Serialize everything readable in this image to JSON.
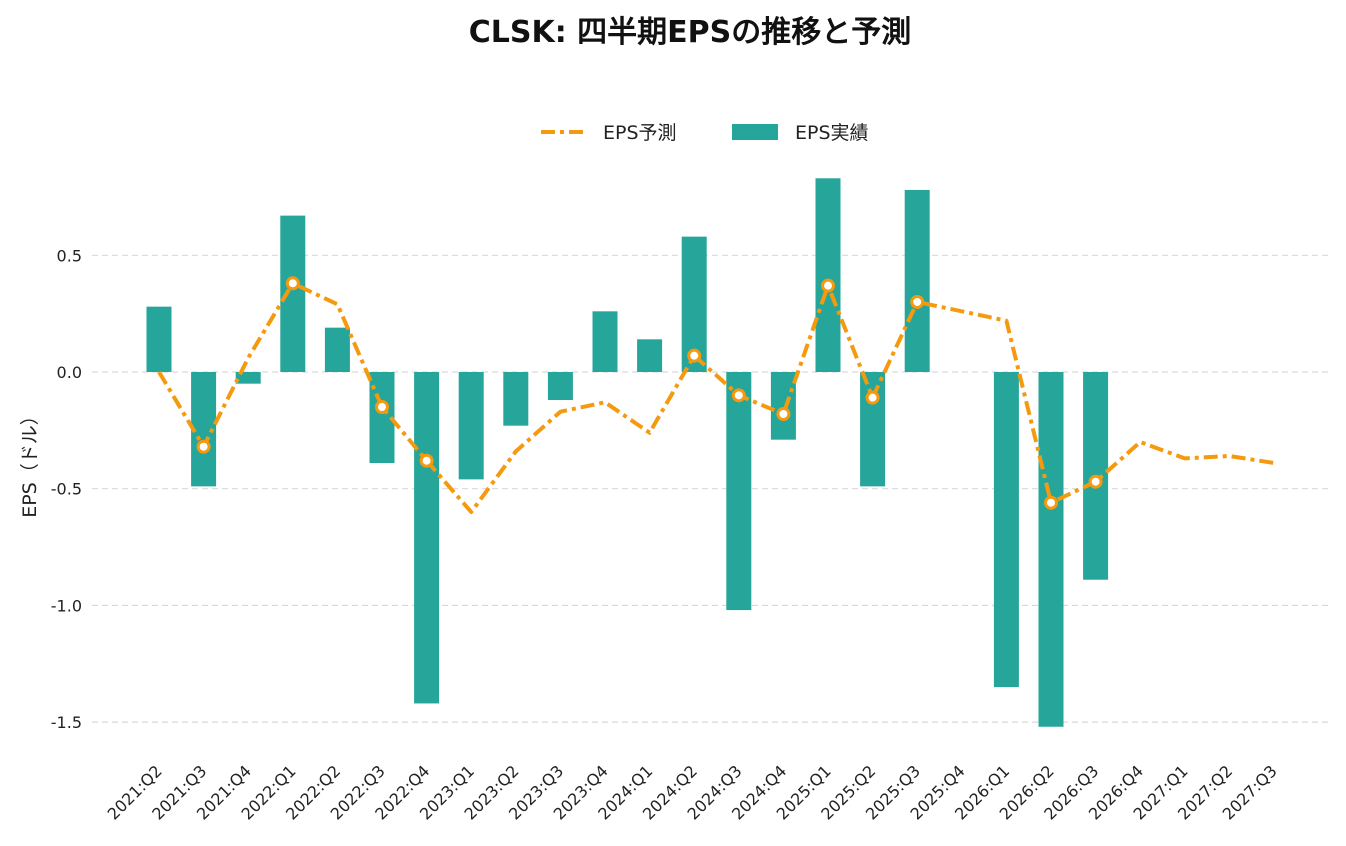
{
  "chart_data": {
    "type": "bar",
    "title": "CLSK: 四半期EPSの推移と予測",
    "ylabel": "EPS（ドル）",
    "xlabel": "",
    "ylim": [
      -1.6,
      0.85
    ],
    "yticks": [
      0.5,
      0.0,
      -0.5,
      -1.0,
      -1.5
    ],
    "ytick_labels": [
      "0.5",
      "0.0",
      "-0.5",
      "-1.0",
      "-1.5"
    ],
    "grid": true,
    "legend_position": "top-center",
    "categories": [
      "2021:Q2",
      "2021:Q3",
      "2021:Q4",
      "2022:Q1",
      "2022:Q2",
      "2022:Q3",
      "2022:Q4",
      "2023:Q1",
      "2023:Q2",
      "2023:Q3",
      "2023:Q4",
      "2024:Q1",
      "2024:Q2",
      "2024:Q3",
      "2024:Q4",
      "2025:Q1",
      "2025:Q2",
      "2025:Q3",
      "2025:Q4",
      "2026:Q1",
      "2026:Q2",
      "2026:Q3",
      "2026:Q4",
      "2027:Q1",
      "2027:Q2",
      "2027:Q3"
    ],
    "series": [
      {
        "name": "EPS予測",
        "kind": "line",
        "color": "#F59A0E",
        "values": [
          0.0,
          -0.32,
          0.06,
          0.38,
          0.29,
          -0.15,
          -0.38,
          -0.6,
          -0.34,
          -0.17,
          -0.13,
          -0.26,
          0.07,
          -0.1,
          -0.18,
          0.37,
          -0.11,
          0.3,
          0.26,
          0.22,
          -0.56,
          -0.47,
          -0.3,
          -0.37,
          -0.36,
          -0.39
        ],
        "markers": [
          false,
          true,
          false,
          true,
          false,
          true,
          true,
          false,
          false,
          false,
          false,
          false,
          true,
          true,
          true,
          true,
          true,
          true,
          false,
          false,
          true,
          true,
          false,
          false,
          false,
          false
        ]
      },
      {
        "name": "EPS実績",
        "kind": "bar",
        "color": "#26A69A",
        "values": [
          0.28,
          -0.49,
          -0.05,
          0.67,
          0.19,
          -0.39,
          -1.42,
          -0.46,
          -0.23,
          -0.12,
          0.26,
          0.14,
          0.58,
          -1.02,
          -0.29,
          0.83,
          -0.49,
          0.78,
          null,
          -1.35,
          -1.52,
          -0.89,
          null,
          null,
          null,
          null
        ]
      }
    ]
  }
}
